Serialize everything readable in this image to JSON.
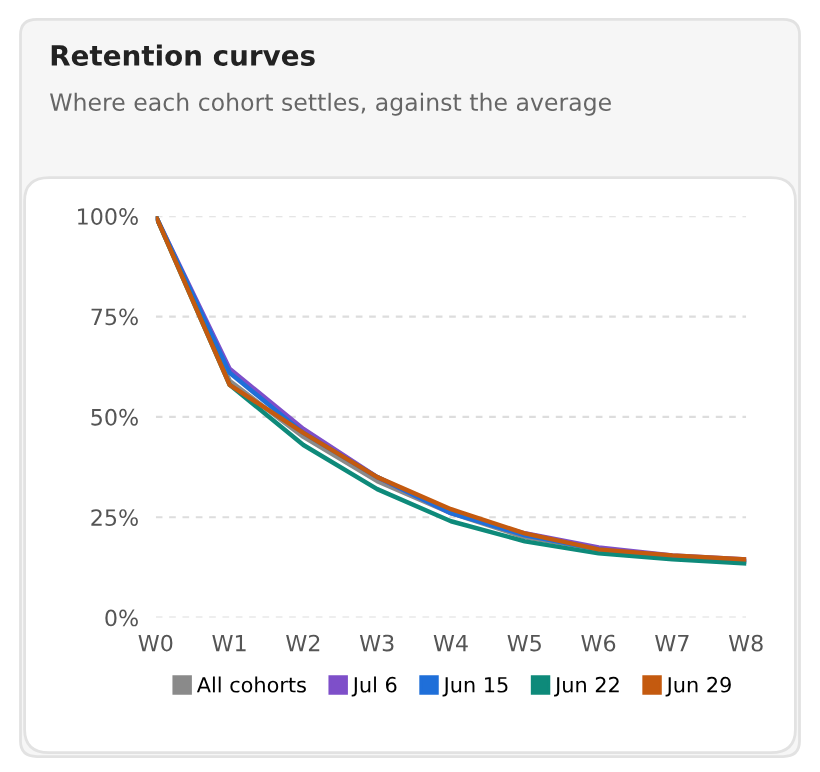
{
  "chart_data": {
    "type": "line",
    "title": "Retention curves",
    "subtitle": "Where each cohort settles, against the average",
    "categories": [
      "W0",
      "W1",
      "W2",
      "W3",
      "W4",
      "W5",
      "W6",
      "W7",
      "W8"
    ],
    "ylim": [
      0,
      100
    ],
    "yticks": [
      {
        "value": 0,
        "label": "0%"
      },
      {
        "value": 25,
        "label": "25%"
      },
      {
        "value": 50,
        "label": "50%"
      },
      {
        "value": 75,
        "label": "75%"
      },
      {
        "value": 100,
        "label": "100%"
      }
    ],
    "grid": "y",
    "legend": "bottom",
    "marker": "none",
    "line_style": "solid",
    "series": [
      {
        "name": "All cohorts",
        "color": "#8a8a8a",
        "values": [
          100,
          59,
          45,
          34,
          26,
          20,
          17,
          15,
          14
        ]
      },
      {
        "name": "Jul 6",
        "color": "#7e4fc9",
        "values": [
          100,
          62,
          47,
          35,
          26,
          21,
          17.5,
          15.5,
          14.5
        ]
      },
      {
        "name": "Jun 15",
        "color": "#1f6fd9",
        "values": [
          100,
          61,
          46,
          35,
          26,
          20.5,
          17,
          15,
          14
        ]
      },
      {
        "name": "Jun 22",
        "color": "#0e8a7a",
        "values": [
          100,
          58,
          43,
          32,
          24,
          19,
          16,
          14.5,
          13.5
        ]
      },
      {
        "name": "Jun 29",
        "color": "#c45a0f",
        "values": [
          100,
          58,
          46,
          35,
          27,
          21,
          17,
          15.5,
          14.5
        ]
      }
    ]
  }
}
